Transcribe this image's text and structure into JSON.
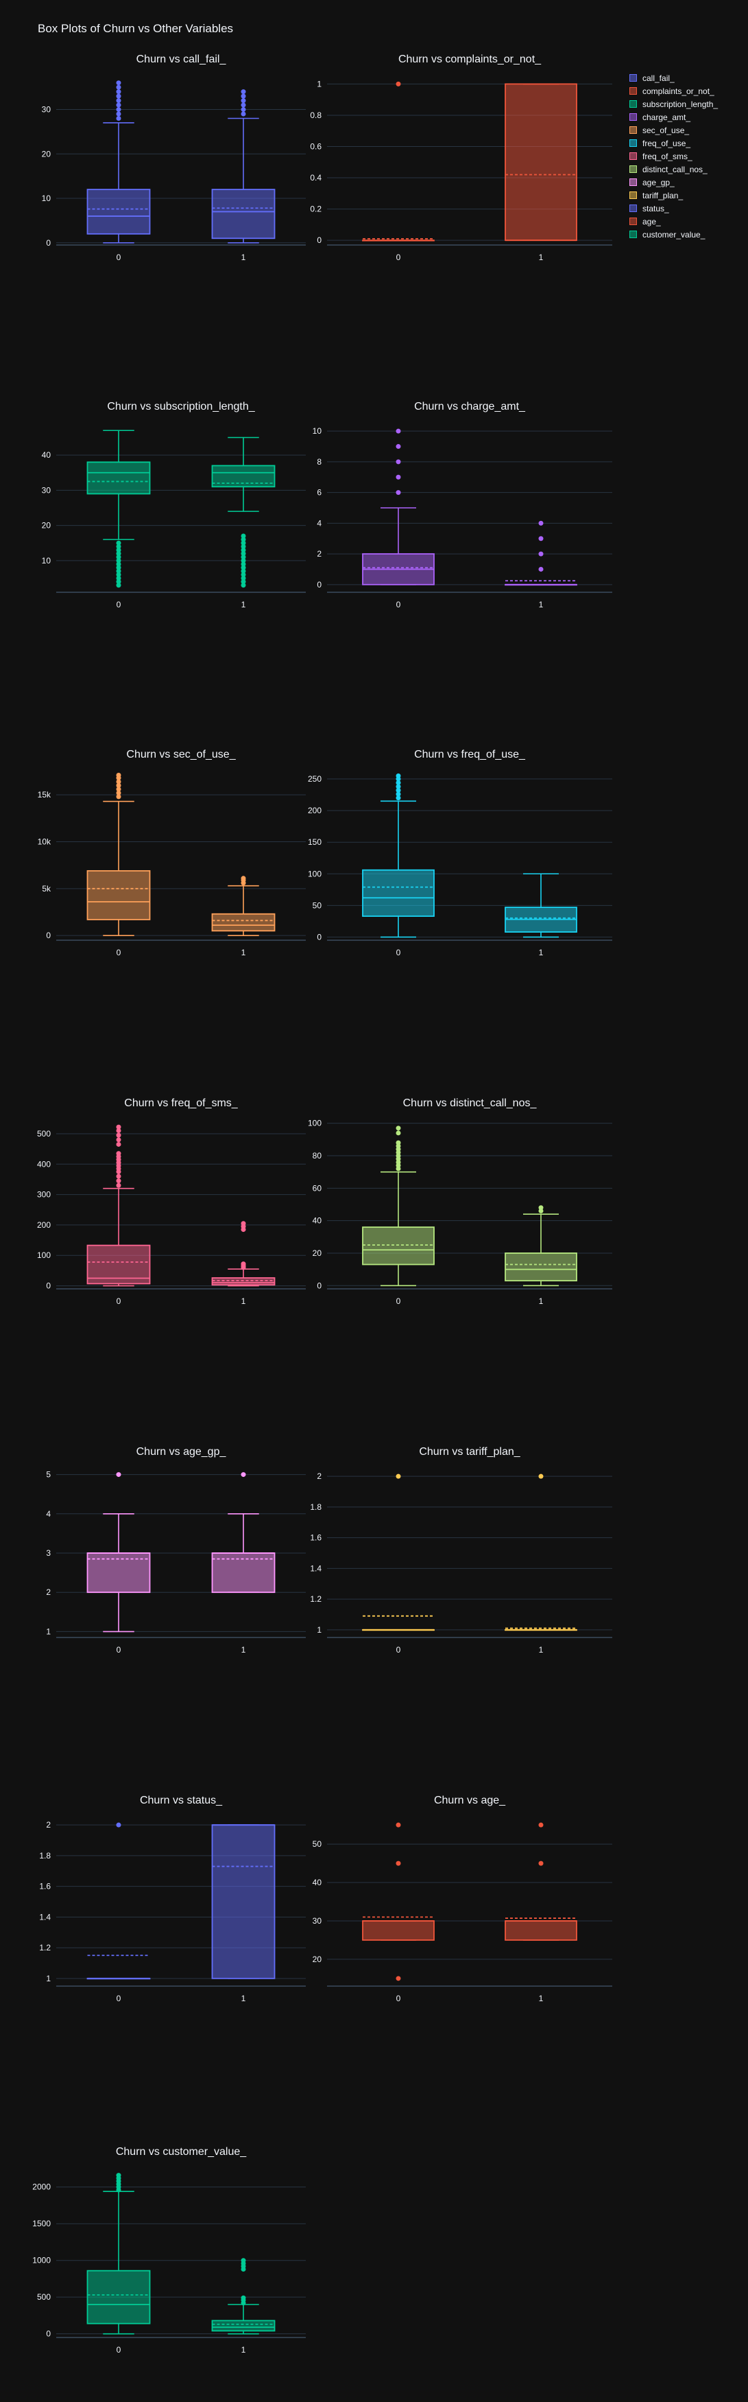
{
  "title": "Box Plots of Churn vs Other Variables",
  "legend": [
    {
      "name": "call_fail_",
      "color": "#636efa"
    },
    {
      "name": "complaints_or_not_",
      "color": "#ef553b"
    },
    {
      "name": "subscription_length_",
      "color": "#00cc96"
    },
    {
      "name": "charge_amt_",
      "color": "#ab63fa"
    },
    {
      "name": "sec_of_use_",
      "color": "#ffa15a"
    },
    {
      "name": "freq_of_use_",
      "color": "#19d3f3"
    },
    {
      "name": "freq_of_sms_",
      "color": "#ff6692"
    },
    {
      "name": "distinct_call_nos_",
      "color": "#b6e880"
    },
    {
      "name": "age_gp_",
      "color": "#ff97ff"
    },
    {
      "name": "tariff_plan_",
      "color": "#fecb52"
    },
    {
      "name": "status_",
      "color": "#636efa"
    },
    {
      "name": "age_",
      "color": "#ef553b"
    },
    {
      "name": "customer_value_",
      "color": "#00cc96"
    }
  ],
  "chart_data": [
    {
      "type": "box",
      "title": "Churn vs call_fail_",
      "series": "call_fail_",
      "categories": [
        "0",
        "1"
      ],
      "yrange": [
        -0.5,
        37.5
      ],
      "yticks": [
        0,
        10,
        20,
        30
      ],
      "ytick_labels": [
        "0",
        "10",
        "20",
        "30"
      ],
      "boxes": [
        {
          "q1": 2,
          "median": 6,
          "q3": 12,
          "lower": 0,
          "upper": 27,
          "mean": 7.6,
          "outliers": [
            28,
            29,
            30,
            31,
            32,
            33,
            34,
            35,
            36
          ]
        },
        {
          "q1": 1,
          "median": 7,
          "q3": 12,
          "lower": 0,
          "upper": 28,
          "mean": 7.8,
          "outliers": [
            29,
            30,
            31,
            32,
            33,
            34
          ]
        }
      ]
    },
    {
      "type": "box",
      "title": "Churn vs complaints_or_not_",
      "series": "complaints_or_not_",
      "categories": [
        "0",
        "1"
      ],
      "yrange": [
        -0.03,
        1.05
      ],
      "yticks": [
        0,
        0.2,
        0.4,
        0.6,
        0.8,
        1
      ],
      "ytick_labels": [
        "0",
        "0.2",
        "0.4",
        "0.6",
        "0.8",
        "1"
      ],
      "boxes": [
        {
          "q1": 0,
          "median": 0,
          "q3": 0,
          "lower": 0,
          "upper": 0,
          "mean": 0.01,
          "outliers": [
            1
          ]
        },
        {
          "q1": 0,
          "median": 0,
          "q3": 1,
          "lower": 0,
          "upper": 1,
          "mean": 0.42,
          "outliers": []
        }
      ]
    },
    {
      "type": "box",
      "title": "Churn vs subscription_length_",
      "series": "subscription_length_",
      "categories": [
        "0",
        "1"
      ],
      "yrange": [
        1,
        49
      ],
      "yticks": [
        10,
        20,
        30,
        40
      ],
      "ytick_labels": [
        "10",
        "20",
        "30",
        "40"
      ],
      "boxes": [
        {
          "q1": 29,
          "median": 35,
          "q3": 38,
          "lower": 16,
          "upper": 47,
          "mean": 32.5,
          "outliers": [
            3,
            4,
            5,
            6,
            7,
            8,
            9,
            10,
            11,
            12,
            13,
            14,
            15
          ]
        },
        {
          "q1": 31,
          "median": 35,
          "q3": 37,
          "lower": 24,
          "upper": 45,
          "mean": 32,
          "outliers": [
            3,
            4,
            5,
            6,
            7,
            8,
            9,
            10,
            11,
            12,
            13,
            14,
            15,
            16,
            17
          ]
        }
      ]
    },
    {
      "type": "box",
      "title": "Churn vs charge_amt_",
      "series": "charge_amt_",
      "categories": [
        "0",
        "1"
      ],
      "yrange": [
        -0.5,
        10.5
      ],
      "yticks": [
        0,
        2,
        4,
        6,
        8,
        10
      ],
      "ytick_labels": [
        "0",
        "2",
        "4",
        "6",
        "8",
        "10"
      ],
      "boxes": [
        {
          "q1": 0,
          "median": 1,
          "q3": 2,
          "lower": 0,
          "upper": 5,
          "mean": 1.1,
          "outliers": [
            6,
            7,
            8,
            9,
            10
          ]
        },
        {
          "q1": 0,
          "median": 0,
          "q3": 0,
          "lower": 0,
          "upper": 0,
          "mean": 0.25,
          "outliers": [
            1,
            2,
            3,
            4
          ]
        }
      ]
    },
    {
      "type": "box",
      "title": "Churn vs sec_of_use_",
      "series": "sec_of_use_",
      "categories": [
        "0",
        "1"
      ],
      "yrange": [
        -500,
        17500
      ],
      "yticks": [
        0,
        5000,
        10000,
        15000
      ],
      "ytick_labels": [
        "0",
        "5k",
        "10k",
        "15k"
      ],
      "boxes": [
        {
          "q1": 1700,
          "median": 3600,
          "q3": 6900,
          "lower": 0,
          "upper": 14300,
          "mean": 5000,
          "outliers": [
            14800,
            15200,
            15600,
            16000,
            16400,
            16800,
            17100
          ]
        },
        {
          "q1": 500,
          "median": 1100,
          "q3": 2300,
          "lower": 0,
          "upper": 5300,
          "mean": 1600,
          "outliers": [
            5600,
            5900,
            6100
          ]
        }
      ]
    },
    {
      "type": "box",
      "title": "Churn vs freq_of_use_",
      "series": "freq_of_use_",
      "categories": [
        "0",
        "1"
      ],
      "yrange": [
        -5,
        262
      ],
      "yticks": [
        0,
        50,
        100,
        150,
        200,
        250
      ],
      "ytick_labels": [
        "0",
        "50",
        "100",
        "150",
        "200",
        "250"
      ],
      "boxes": [
        {
          "q1": 33,
          "median": 62,
          "q3": 106,
          "lower": 0,
          "upper": 215,
          "mean": 79,
          "outliers": [
            220,
            226,
            232,
            238,
            244,
            250,
            255
          ]
        },
        {
          "q1": 8,
          "median": 28,
          "q3": 47,
          "lower": 0,
          "upper": 100,
          "mean": 30,
          "outliers": []
        }
      ]
    },
    {
      "type": "box",
      "title": "Churn vs freq_of_sms_",
      "series": "freq_of_sms_",
      "categories": [
        "0",
        "1"
      ],
      "yrange": [
        -10,
        545
      ],
      "yticks": [
        0,
        100,
        200,
        300,
        400,
        500
      ],
      "ytick_labels": [
        "0",
        "100",
        "200",
        "300",
        "400",
        "500"
      ],
      "boxes": [
        {
          "q1": 7,
          "median": 25,
          "q3": 133,
          "lower": 0,
          "upper": 320,
          "mean": 78,
          "outliers": [
            330,
            345,
            360,
            375,
            385,
            395,
            405,
            415,
            425,
            435,
            465,
            480,
            495,
            510,
            522
          ]
        },
        {
          "q1": 3,
          "median": 10,
          "q3": 26,
          "lower": 0,
          "upper": 55,
          "mean": 17,
          "outliers": [
            60,
            63,
            68,
            72,
            185,
            195,
            205
          ]
        }
      ]
    },
    {
      "type": "box",
      "title": "Churn vs distinct_call_nos_",
      "series": "distinct_call_nos_",
      "categories": [
        "0",
        "1"
      ],
      "yrange": [
        -2,
        102
      ],
      "yticks": [
        0,
        20,
        40,
        60,
        80,
        100
      ],
      "ytick_labels": [
        "0",
        "20",
        "40",
        "60",
        "80",
        "100"
      ],
      "boxes": [
        {
          "q1": 13,
          "median": 22,
          "q3": 36,
          "lower": 0,
          "upper": 70,
          "mean": 25,
          "outliers": [
            72,
            74,
            76,
            78,
            80,
            82,
            84,
            86,
            88,
            94,
            97
          ]
        },
        {
          "q1": 3,
          "median": 10,
          "q3": 20,
          "lower": 0,
          "upper": 44,
          "mean": 13,
          "outliers": [
            46,
            48
          ]
        }
      ]
    },
    {
      "type": "box",
      "title": "Churn vs age_gp_",
      "series": "age_gp_",
      "categories": [
        "0",
        "1"
      ],
      "yrange": [
        0.85,
        5.15
      ],
      "yticks": [
        1,
        2,
        3,
        4,
        5
      ],
      "ytick_labels": [
        "1",
        "2",
        "3",
        "4",
        "5"
      ],
      "boxes": [
        {
          "q1": 2,
          "median": 3,
          "q3": 3,
          "lower": 1,
          "upper": 4,
          "mean": 2.85,
          "outliers": [
            5
          ]
        },
        {
          "q1": 2,
          "median": 3,
          "q3": 3,
          "lower": 2,
          "upper": 4,
          "mean": 2.85,
          "outliers": [
            5
          ]
        }
      ]
    },
    {
      "type": "box",
      "title": "Churn vs tariff_plan_",
      "series": "tariff_plan_",
      "categories": [
        "0",
        "1"
      ],
      "yrange": [
        0.95,
        2.05
      ],
      "yticks": [
        1,
        1.2,
        1.4,
        1.6,
        1.8,
        2
      ],
      "ytick_labels": [
        "1",
        "1.2",
        "1.4",
        "1.6",
        "1.8",
        "2"
      ],
      "boxes": [
        {
          "q1": 1,
          "median": 1,
          "q3": 1,
          "lower": 1,
          "upper": 1,
          "mean": 1.09,
          "outliers": [
            2
          ]
        },
        {
          "q1": 1,
          "median": 1,
          "q3": 1,
          "lower": 1,
          "upper": 1,
          "mean": 1.01,
          "outliers": [
            2
          ]
        }
      ]
    },
    {
      "type": "box",
      "title": "Churn vs status_",
      "series": "status_",
      "categories": [
        "0",
        "1"
      ],
      "yrange": [
        0.95,
        2.05
      ],
      "yticks": [
        1,
        1.2,
        1.4,
        1.6,
        1.8,
        2
      ],
      "ytick_labels": [
        "1",
        "1.2",
        "1.4",
        "1.6",
        "1.8",
        "2"
      ],
      "boxes": [
        {
          "q1": 1,
          "median": 1,
          "q3": 1,
          "lower": 1,
          "upper": 1,
          "mean": 1.15,
          "outliers": [
            2
          ]
        },
        {
          "q1": 1,
          "median": 2,
          "q3": 2,
          "lower": 1,
          "upper": 2,
          "mean": 1.73,
          "outliers": []
        }
      ]
    },
    {
      "type": "box",
      "title": "Churn vs age_",
      "series": "age_",
      "categories": [
        "0",
        "1"
      ],
      "yrange": [
        13,
        57
      ],
      "yticks": [
        20,
        30,
        40,
        50
      ],
      "ytick_labels": [
        "20",
        "30",
        "40",
        "50"
      ],
      "boxes": [
        {
          "q1": 25,
          "median": 30,
          "q3": 30,
          "lower": 25,
          "upper": 30,
          "mean": 31,
          "outliers": [
            15,
            45,
            55
          ]
        },
        {
          "q1": 25,
          "median": 30,
          "q3": 30,
          "lower": 25,
          "upper": 30,
          "mean": 30.7,
          "outliers": [
            45,
            55
          ]
        }
      ]
    },
    {
      "type": "box",
      "title": "Churn vs customer_value_",
      "series": "customer_value_",
      "categories": [
        "0",
        "1"
      ],
      "yrange": [
        -50,
        2250
      ],
      "yticks": [
        0,
        500,
        1000,
        1500,
        2000
      ],
      "ytick_labels": [
        "0",
        "500",
        "1000",
        "1500",
        "2000"
      ],
      "boxes": [
        {
          "q1": 140,
          "median": 400,
          "q3": 860,
          "lower": 0,
          "upper": 1940,
          "mean": 530,
          "outliers": [
            1960,
            2000,
            2040,
            2080,
            2120,
            2160
          ]
        },
        {
          "q1": 40,
          "median": 90,
          "q3": 180,
          "lower": 0,
          "upper": 400,
          "mean": 130,
          "outliers": [
            420,
            460,
            490,
            880,
            920,
            960,
            1000
          ]
        }
      ]
    }
  ]
}
